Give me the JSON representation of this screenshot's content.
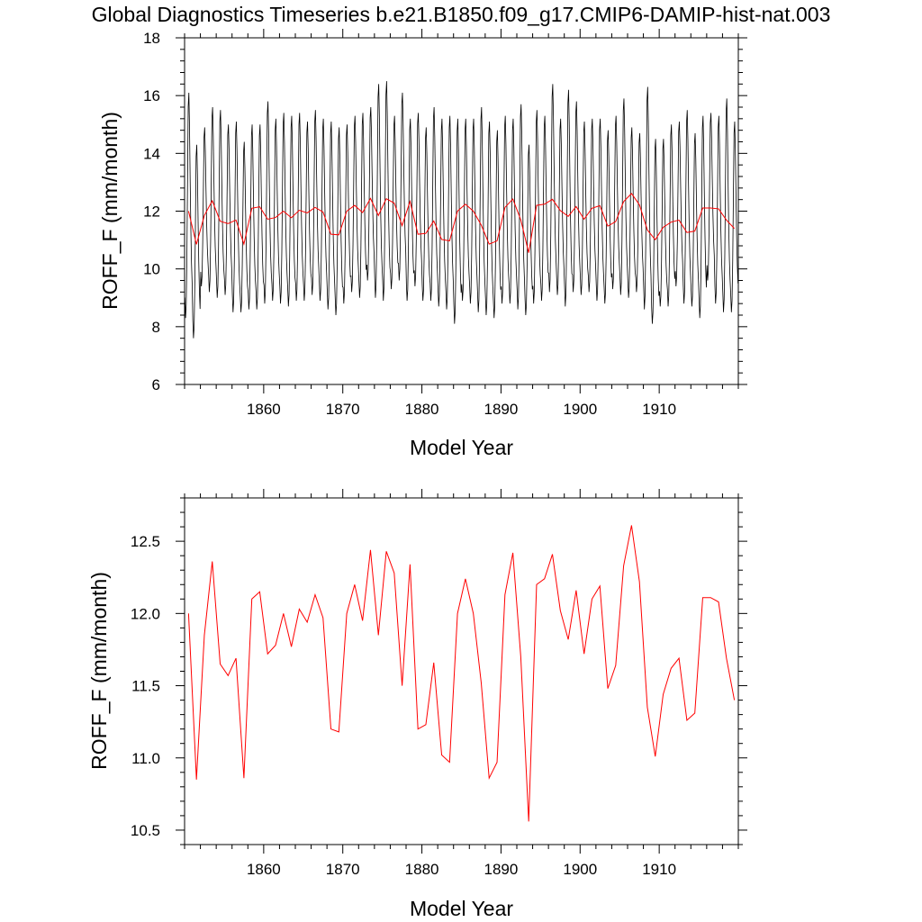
{
  "title": "Global Diagnostics Timeseries b.e21.B1850.f09_g17.CMIP6-DAMIP-hist-nat.003",
  "chart_data": [
    {
      "type": "line",
      "xlabel": "Model Year",
      "ylabel": "ROFF_F (mm/month)",
      "xlim": [
        1850,
        1920
      ],
      "ylim": [
        6,
        18
      ],
      "x_ticks": [
        1860,
        1870,
        1880,
        1890,
        1900,
        1910
      ],
      "x_tick_labels": [
        "1860",
        "1870",
        "1880",
        "1890",
        "1900",
        "1910"
      ],
      "y_ticks": [
        6,
        8,
        10,
        12,
        14,
        16,
        18
      ],
      "y_tick_labels": [
        "6",
        "8",
        "10",
        "12",
        "14",
        "16",
        "18"
      ],
      "series": [
        {
          "kind": "monthly",
          "color": "#000000",
          "start_year": 1850,
          "monthly_climatology": [
            9.2,
            8.6,
            9.0,
            10.4,
            12.6,
            14.8,
            15.2,
            14.2,
            12.6,
            11.2,
            10.2,
            9.6
          ],
          "annual_peaks": [
            16.1,
            14.3,
            14.9,
            15.6,
            15.5,
            15.0,
            15.1,
            14.4,
            15.0,
            15.0,
            15.8,
            15.2,
            15.4,
            15.3,
            15.4,
            15.1,
            15.5,
            15.2,
            15.1,
            14.9,
            15.0,
            15.3,
            15.4,
            15.6,
            16.4,
            16.5,
            15.3,
            16.1,
            15.2,
            15.4,
            14.9,
            15.6,
            15.2,
            15.3,
            15.2,
            15.2,
            15.2,
            15.6,
            15.1,
            14.8,
            15.3,
            15.2,
            15.7,
            14.3,
            15.5,
            15.3,
            16.4,
            15.2,
            16.2,
            15.8,
            15.1,
            15.2,
            15.2,
            14.8,
            15.3,
            15.9,
            14.9,
            14.7,
            16.3,
            14.5,
            14.5,
            15.0,
            15.1,
            15.5,
            14.7,
            15.3,
            15.4,
            15.3,
            15.9,
            15.1
          ],
          "annual_troughs": [
            8.3,
            7.6,
            9.4,
            9.2,
            9.0,
            9.1,
            8.5,
            8.5,
            8.6,
            8.6,
            8.8,
            8.9,
            8.8,
            8.7,
            8.9,
            8.9,
            9.1,
            8.9,
            8.6,
            8.4,
            8.8,
            9.2,
            9.0,
            9.6,
            9.0,
            8.9,
            9.3,
            9.6,
            8.9,
            9.4,
            8.9,
            8.9,
            8.7,
            8.6,
            8.1,
            8.9,
            8.8,
            8.5,
            8.4,
            8.3,
            8.8,
            8.8,
            8.6,
            8.4,
            8.8,
            8.9,
            9.2,
            9.1,
            8.7,
            9.2,
            9.1,
            9.2,
            8.9,
            8.8,
            9.3,
            9.1,
            9.0,
            9.2,
            8.6,
            8.1,
            8.7,
            8.7,
            9.4,
            8.8,
            8.7,
            8.3,
            9.6,
            8.8,
            8.5,
            8.5
          ]
        },
        {
          "kind": "annual",
          "color": "#ff0000",
          "x": [
            1850.5,
            1851.5,
            1852.5,
            1853.5,
            1854.5,
            1855.5,
            1856.5,
            1857.5,
            1858.5,
            1859.5,
            1860.5,
            1861.5,
            1862.5,
            1863.5,
            1864.5,
            1865.5,
            1866.5,
            1867.5,
            1868.5,
            1869.5,
            1870.5,
            1871.5,
            1872.5,
            1873.5,
            1874.5,
            1875.5,
            1876.5,
            1877.5,
            1878.5,
            1879.5,
            1880.5,
            1881.5,
            1882.5,
            1883.5,
            1884.5,
            1885.5,
            1886.5,
            1887.5,
            1888.5,
            1889.5,
            1890.5,
            1891.5,
            1892.5,
            1893.5,
            1894.5,
            1895.5,
            1896.5,
            1897.5,
            1898.5,
            1899.5,
            1900.5,
            1901.5,
            1902.5,
            1903.5,
            1904.5,
            1905.5,
            1906.5,
            1907.5,
            1908.5,
            1909.5,
            1910.5,
            1911.5,
            1912.5,
            1913.5,
            1914.5,
            1915.5,
            1916.5,
            1917.5,
            1918.5,
            1919.5
          ],
          "values": [
            12.0,
            10.85,
            11.85,
            12.36,
            11.65,
            11.57,
            11.69,
            10.86,
            12.1,
            12.15,
            11.72,
            11.78,
            12.0,
            11.77,
            12.03,
            11.94,
            12.13,
            11.97,
            11.2,
            11.18,
            12.0,
            12.2,
            11.95,
            12.44,
            11.85,
            12.43,
            12.28,
            11.5,
            12.34,
            11.2,
            11.23,
            11.66,
            11.02,
            10.97,
            12.0,
            12.24,
            12.0,
            11.52,
            10.86,
            10.97,
            12.13,
            12.42,
            11.7,
            10.56,
            12.2,
            12.24,
            12.41,
            12.02,
            11.82,
            12.16,
            11.72,
            12.1,
            12.19,
            11.48,
            11.64,
            12.33,
            12.61,
            12.22,
            11.35,
            11.01,
            11.44,
            11.62,
            11.69,
            11.26,
            11.31,
            12.11,
            12.11,
            12.08,
            11.69,
            11.4
          ]
        }
      ]
    },
    {
      "type": "line",
      "xlabel": "Model Year",
      "ylabel": "ROFF_F (mm/month)",
      "xlim": [
        1850,
        1920
      ],
      "ylim": [
        10.4,
        12.8
      ],
      "x_ticks": [
        1860,
        1870,
        1880,
        1890,
        1900,
        1910
      ],
      "x_tick_labels": [
        "1860",
        "1870",
        "1880",
        "1890",
        "1900",
        "1910"
      ],
      "y_ticks": [
        10.5,
        11.0,
        11.5,
        12.0,
        12.5
      ],
      "y_tick_labels": [
        "10.5",
        "11.0",
        "11.5",
        "12.0",
        "12.5"
      ],
      "series": [
        {
          "kind": "annual",
          "color": "#ff0000",
          "x": [
            1850.5,
            1851.5,
            1852.5,
            1853.5,
            1854.5,
            1855.5,
            1856.5,
            1857.5,
            1858.5,
            1859.5,
            1860.5,
            1861.5,
            1862.5,
            1863.5,
            1864.5,
            1865.5,
            1866.5,
            1867.5,
            1868.5,
            1869.5,
            1870.5,
            1871.5,
            1872.5,
            1873.5,
            1874.5,
            1875.5,
            1876.5,
            1877.5,
            1878.5,
            1879.5,
            1880.5,
            1881.5,
            1882.5,
            1883.5,
            1884.5,
            1885.5,
            1886.5,
            1887.5,
            1888.5,
            1889.5,
            1890.5,
            1891.5,
            1892.5,
            1893.5,
            1894.5,
            1895.5,
            1896.5,
            1897.5,
            1898.5,
            1899.5,
            1900.5,
            1901.5,
            1902.5,
            1903.5,
            1904.5,
            1905.5,
            1906.5,
            1907.5,
            1908.5,
            1909.5,
            1910.5,
            1911.5,
            1912.5,
            1913.5,
            1914.5,
            1915.5,
            1916.5,
            1917.5,
            1918.5,
            1919.5
          ],
          "values": [
            12.0,
            10.85,
            11.85,
            12.36,
            11.65,
            11.57,
            11.69,
            10.86,
            12.1,
            12.15,
            11.72,
            11.78,
            12.0,
            11.77,
            12.03,
            11.94,
            12.13,
            11.97,
            11.2,
            11.18,
            12.0,
            12.2,
            11.95,
            12.44,
            11.85,
            12.43,
            12.28,
            11.5,
            12.34,
            11.2,
            11.23,
            11.66,
            11.02,
            10.97,
            12.0,
            12.24,
            12.0,
            11.52,
            10.86,
            10.97,
            12.13,
            12.42,
            11.7,
            10.56,
            12.2,
            12.24,
            12.41,
            12.02,
            11.82,
            12.16,
            11.72,
            12.1,
            12.19,
            11.48,
            11.64,
            12.33,
            12.61,
            12.22,
            11.35,
            11.01,
            11.44,
            11.62,
            11.69,
            11.26,
            11.31,
            12.11,
            12.11,
            12.08,
            11.69,
            11.4
          ]
        }
      ]
    }
  ]
}
